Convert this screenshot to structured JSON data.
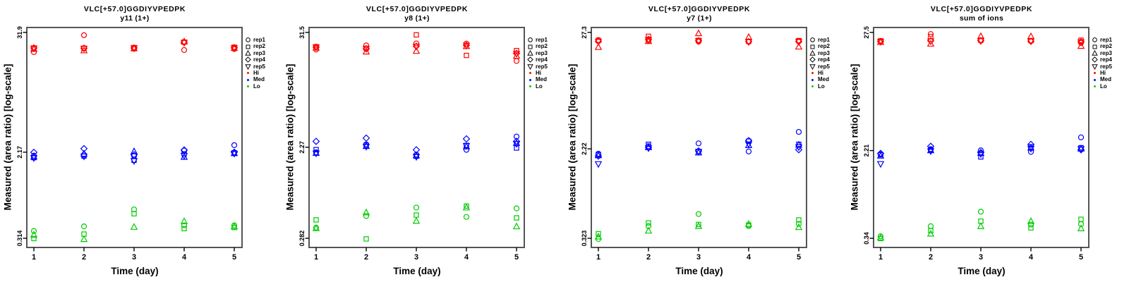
{
  "figure": {
    "ylabel": "Measured (area ratio) [log-scale]",
    "xlabel": "Time (day)",
    "x_ticks": [
      "1",
      "2",
      "3",
      "4",
      "5"
    ],
    "level_colors": {
      "Hi": "#FF0000",
      "Med": "#0000FF",
      "Lo": "#00CC00"
    },
    "rep_symbols": {
      "rep1": "circle",
      "rep2": "square",
      "rep3": "triangle-up",
      "rep4": "diamond",
      "rep5": "triangle-down"
    },
    "legend": [
      {
        "label": "rep1",
        "symbol": "circle",
        "color": "#000000"
      },
      {
        "label": "rep2",
        "symbol": "square",
        "color": "#000000"
      },
      {
        "label": "rep3",
        "symbol": "triangle-up",
        "color": "#000000"
      },
      {
        "label": "rep4",
        "symbol": "diamond",
        "color": "#000000"
      },
      {
        "label": "rep5",
        "symbol": "triangle-down",
        "color": "#000000"
      },
      {
        "label": "Hi",
        "symbol": "dot",
        "color": "#FF0000"
      },
      {
        "label": "Med",
        "symbol": "dot",
        "color": "#0000FF"
      },
      {
        "label": "Lo",
        "symbol": "dot",
        "color": "#00CC00"
      }
    ]
  },
  "chart_data": [
    {
      "type": "scatter",
      "title": "VLC[+57.0]GGDIYVPEDPK",
      "subtitle": "y11 (1+)",
      "xlabel": "Time (day)",
      "ylabel": "Measured (area ratio) [log-scale]",
      "yscale": "log",
      "ytick_labels": [
        "0.314",
        "2.17",
        "31.9"
      ],
      "x": [
        1,
        2,
        3,
        4,
        5
      ],
      "series": [
        {
          "level": "Hi",
          "rep": "rep1",
          "values": [
            20.5,
            30.0,
            22.1,
            21.5,
            22.0
          ]
        },
        {
          "level": "Hi",
          "rep": "rep2",
          "values": [
            22.5,
            22.4,
            22.7,
            25.7,
            22.9
          ]
        },
        {
          "level": "Hi",
          "rep": "rep3",
          "values": [
            22.0,
            21.3,
            22.3,
            26.0,
            22.5
          ]
        },
        {
          "level": "Hi",
          "rep": "rep4",
          "values": [
            22.5,
            22.4,
            22.5,
            25.5,
            22.6
          ]
        },
        {
          "level": "Hi",
          "rep": "rep5",
          "values": [
            22.3,
            22.2,
            22.4,
            25.3,
            22.4
          ]
        },
        {
          "level": "Med",
          "rep": "rep1",
          "values": [
            2.01,
            2.05,
            2.0,
            2.25,
            2.54
          ]
        },
        {
          "level": "Med",
          "rep": "rep2",
          "values": [
            1.92,
            1.99,
            1.81,
            2.09,
            2.14
          ]
        },
        {
          "level": "Med",
          "rep": "rep3",
          "values": [
            1.96,
            2.09,
            2.21,
            1.95,
            2.12
          ]
        },
        {
          "level": "Med",
          "rep": "rep4",
          "values": [
            2.16,
            2.35,
            2.05,
            2.28,
            2.17
          ]
        },
        {
          "level": "Med",
          "rep": "rep5",
          "values": [
            1.9,
            1.97,
            1.78,
            2.0,
            2.1
          ]
        },
        {
          "level": "Lo",
          "rep": "rep1",
          "values": [
            0.37,
            0.41,
            0.6,
            0.42,
            0.42
          ]
        },
        {
          "level": "Lo",
          "rep": "rep2",
          "values": [
            0.312,
            0.345,
            0.545,
            0.39,
            0.4
          ]
        },
        {
          "level": "Lo",
          "rep": "rep3",
          "values": [
            0.34,
            0.308,
            0.405,
            0.46,
            0.41
          ]
        }
      ]
    },
    {
      "type": "scatter",
      "title": "VLC[+57.0]GGDIYVPEDPK",
      "subtitle": "y8 (1+)",
      "xlabel": "Time (day)",
      "ylabel": "Measured (area ratio) [log-scale]",
      "yscale": "log",
      "ytick_labels": [
        "0.282",
        "2.27",
        "31.5"
      ],
      "x": [
        1,
        2,
        3,
        4,
        5
      ],
      "series": [
        {
          "level": "Hi",
          "rep": "rep1",
          "values": [
            21.3,
            23.4,
            24.5,
            24.4,
            16.4
          ]
        },
        {
          "level": "Hi",
          "rep": "rep2",
          "values": [
            22.7,
            21.9,
            29.8,
            18.6,
            20.8
          ]
        },
        {
          "level": "Hi",
          "rep": "rep3",
          "values": [
            22.2,
            20.3,
            20.6,
            23.0,
            18.4
          ]
        },
        {
          "level": "Hi",
          "rep": "rep4",
          "values": [
            22.5,
            21.7,
            23.0,
            23.5,
            19.5
          ]
        },
        {
          "level": "Hi",
          "rep": "rep5",
          "values": [
            22.4,
            21.6,
            22.8,
            23.3,
            19.3
          ]
        },
        {
          "level": "Med",
          "rep": "rep1",
          "values": [
            2.02,
            2.42,
            1.92,
            2.14,
            2.9
          ]
        },
        {
          "level": "Med",
          "rep": "rep2",
          "values": [
            2.15,
            2.38,
            1.85,
            2.37,
            2.23
          ]
        },
        {
          "level": "Med",
          "rep": "rep3",
          "values": [
            1.99,
            2.33,
            1.88,
            2.31,
            2.5
          ]
        },
        {
          "level": "Med",
          "rep": "rep4",
          "values": [
            2.6,
            2.8,
            2.14,
            2.75,
            2.6
          ]
        },
        {
          "level": "Med",
          "rep": "rep5",
          "values": [
            1.97,
            2.3,
            1.82,
            2.34,
            2.45
          ]
        },
        {
          "level": "Lo",
          "rep": "rep1",
          "values": [
            0.36,
            0.47,
            0.57,
            0.46,
            0.56
          ]
        },
        {
          "level": "Lo",
          "rep": "rep2",
          "values": [
            0.43,
            0.278,
            0.48,
            0.59,
            0.45
          ]
        },
        {
          "level": "Lo",
          "rep": "rep3",
          "values": [
            0.355,
            0.51,
            0.42,
            0.57,
            0.37
          ]
        }
      ]
    },
    {
      "type": "scatter",
      "title": "VLC[+57.0]GGDIYVPEDPK",
      "subtitle": "y7 (1+)",
      "xlabel": "Time (day)",
      "ylabel": "Measured (area ratio) [log-scale]",
      "yscale": "log",
      "ytick_labels": [
        "0.323",
        "2.22",
        "27.3"
      ],
      "x": [
        1,
        2,
        3,
        4,
        5
      ],
      "series": [
        {
          "level": "Hi",
          "rep": "rep1",
          "values": [
            23.2,
            22.9,
            22.4,
            22.3,
            22.6
          ]
        },
        {
          "level": "Hi",
          "rep": "rep2",
          "values": [
            23.0,
            25.1,
            23.0,
            22.5,
            22.9
          ]
        },
        {
          "level": "Hi",
          "rep": "rep3",
          "values": [
            19.9,
            22.6,
            26.8,
            24.7,
            20.1
          ]
        },
        {
          "level": "Hi",
          "rep": "rep4",
          "values": [
            22.5,
            23.5,
            22.8,
            22.4,
            22.4
          ]
        },
        {
          "level": "Hi",
          "rep": "rep5",
          "values": [
            22.3,
            23.3,
            22.6,
            22.2,
            22.3
          ]
        },
        {
          "level": "Med",
          "rep": "rep1",
          "values": [
            2.0,
            2.35,
            2.5,
            2.1,
            3.2
          ]
        },
        {
          "level": "Med",
          "rep": "rep2",
          "values": [
            1.96,
            2.45,
            2.1,
            2.62,
            2.45
          ]
        },
        {
          "level": "Med",
          "rep": "rep3",
          "values": [
            1.93,
            2.3,
            2.05,
            2.4,
            2.42
          ]
        },
        {
          "level": "Med",
          "rep": "rep4",
          "values": [
            1.9,
            2.28,
            2.12,
            2.65,
            2.18
          ]
        },
        {
          "level": "Med",
          "rep": "rep5",
          "values": [
            1.6,
            2.25,
            2.08,
            2.45,
            2.3
          ]
        },
        {
          "level": "Lo",
          "rep": "rep1",
          "values": [
            0.318,
            0.42,
            0.545,
            0.42,
            0.44
          ]
        },
        {
          "level": "Lo",
          "rep": "rep2",
          "values": [
            0.357,
            0.45,
            0.435,
            0.43,
            0.48
          ]
        },
        {
          "level": "Lo",
          "rep": "rep3",
          "values": [
            0.335,
            0.38,
            0.42,
            0.44,
            0.41
          ]
        }
      ]
    },
    {
      "type": "scatter",
      "title": "VLC[+57.0]GGDIYVPEDPK",
      "subtitle": "sum of ions",
      "xlabel": "Time (day)",
      "ylabel": "Measured (area ratio) [log-scale]",
      "yscale": "log",
      "ytick_labels": [
        "0.34",
        "2.21",
        "27.5"
      ],
      "x": [
        1,
        2,
        3,
        4,
        5
      ],
      "series": [
        {
          "level": "Hi",
          "rep": "rep1",
          "values": [
            22.8,
            26.6,
            23.0,
            22.9,
            22.0
          ]
        },
        {
          "level": "Hi",
          "rep": "rep2",
          "values": [
            23.0,
            25.2,
            23.3,
            23.1,
            23.3
          ]
        },
        {
          "level": "Hi",
          "rep": "rep3",
          "values": [
            22.4,
            21.6,
            25.4,
            25.3,
            20.6
          ]
        },
        {
          "level": "Hi",
          "rep": "rep4",
          "values": [
            22.7,
            23.0,
            23.1,
            22.8,
            22.5
          ]
        },
        {
          "level": "Hi",
          "rep": "rep5",
          "values": [
            22.5,
            22.8,
            22.9,
            22.7,
            22.3
          ]
        },
        {
          "level": "Med",
          "rep": "rep1",
          "values": [
            2.05,
            2.28,
            2.22,
            2.15,
            2.93
          ]
        },
        {
          "level": "Med",
          "rep": "rep2",
          "values": [
            2.02,
            2.25,
            1.93,
            2.4,
            2.35
          ]
        },
        {
          "level": "Med",
          "rep": "rep3",
          "values": [
            1.98,
            2.22,
            2.1,
            2.35,
            2.3
          ]
        },
        {
          "level": "Med",
          "rep": "rep4",
          "values": [
            2.08,
            2.42,
            2.12,
            2.52,
            2.25
          ]
        },
        {
          "level": "Med",
          "rep": "rep5",
          "values": [
            1.66,
            2.18,
            2.05,
            2.3,
            2.28
          ]
        },
        {
          "level": "Lo",
          "rep": "rep1",
          "values": [
            0.355,
            0.44,
            0.6,
            0.455,
            0.46
          ]
        },
        {
          "level": "Lo",
          "rep": "rep2",
          "values": [
            0.338,
            0.4,
            0.49,
            0.425,
            0.51
          ]
        },
        {
          "level": "Lo",
          "rep": "rep3",
          "values": [
            0.345,
            0.375,
            0.44,
            0.49,
            0.42
          ]
        }
      ]
    }
  ]
}
